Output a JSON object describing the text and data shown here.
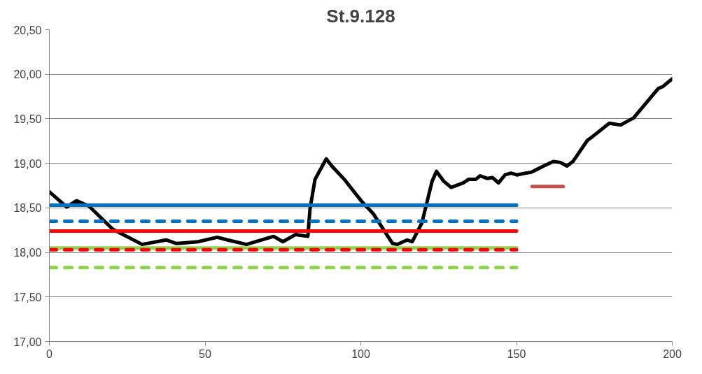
{
  "chart_data": {
    "type": "line",
    "title": "St.9.128",
    "xlim": [
      0,
      200
    ],
    "xticks": [
      0,
      50,
      100,
      150,
      200
    ],
    "ylim": [
      17,
      20.5
    ],
    "yticks": [
      {
        "value": 17,
        "label": "17,00"
      },
      {
        "value": 17.5,
        "label": "17,50"
      },
      {
        "value": 18,
        "label": "18,00"
      },
      {
        "value": 18.5,
        "label": "18,50"
      },
      {
        "value": 19,
        "label": "19,00"
      },
      {
        "value": 19.5,
        "label": "19,50"
      },
      {
        "value": 20,
        "label": "20,00"
      },
      {
        "value": 20.5,
        "label": "20,50"
      }
    ],
    "grid": "y",
    "line_style": "solid",
    "series": [
      {
        "color": "#000000",
        "x": [
          0,
          5.6,
          8.7,
          12.7,
          20.4,
          29.8,
          37.5,
          40.8,
          47.8,
          53.9,
          57.2,
          63.3,
          72.0,
          75.0,
          79.0,
          83.0,
          83.7,
          85.3,
          88.9,
          90.7,
          94.7,
          100.1,
          104.1,
          110.2,
          111.8,
          114.9,
          116.5,
          119.6,
          122.9,
          124.3,
          126.6,
          129.0,
          132.9,
          134.6,
          136.9,
          138.3,
          140.7,
          142.3,
          144.2,
          146.3,
          148.2,
          150.1,
          152.9,
          154.7,
          158.7,
          161.8,
          164.1,
          166.2,
          168.1,
          172.8,
          174.4,
          179.8,
          183.4,
          187.6,
          195.5,
          196.9,
          200
        ],
        "values": [
          18.68,
          18.51,
          18.58,
          18.52,
          18.26,
          18.09,
          18.14,
          18.1,
          18.12,
          18.17,
          18.14,
          18.09,
          18.18,
          18.12,
          18.2,
          18.18,
          18.49,
          18.82,
          19.05,
          18.97,
          18.82,
          18.58,
          18.43,
          18.1,
          18.09,
          18.14,
          18.12,
          18.33,
          18.8,
          18.91,
          18.8,
          18.73,
          18.78,
          18.82,
          18.82,
          18.86,
          18.83,
          18.84,
          18.78,
          18.87,
          18.89,
          18.87,
          18.89,
          18.9,
          18.97,
          19.02,
          19.01,
          18.97,
          19.02,
          19.26,
          19.3,
          19.45,
          19.43,
          19.51,
          19.84,
          19.86,
          19.95
        ]
      },
      {
        "color": "#0070c0",
        "x": [
          0,
          150
        ],
        "values": [
          18.53,
          18.53
        ]
      },
      {
        "color": "#0070c0",
        "x": [
          0,
          150
        ],
        "values": [
          18.35,
          18.35
        ],
        "line_style": "dashed"
      },
      {
        "color": "#ff0000",
        "x": [
          0,
          150
        ],
        "values": [
          18.24,
          18.24
        ]
      },
      {
        "color": "#92d050",
        "x": [
          0,
          150
        ],
        "values": [
          18.05,
          18.05
        ]
      },
      {
        "color": "#ff0000",
        "x": [
          0,
          150
        ],
        "values": [
          18.03,
          18.03
        ],
        "line_style": "dashed"
      },
      {
        "color": "#92d050",
        "x": [
          0,
          150
        ],
        "values": [
          17.83,
          17.83
        ],
        "line_style": "dashed"
      },
      {
        "color": "#c0504d",
        "x": [
          155,
          165
        ],
        "values": [
          18.74,
          18.74
        ]
      }
    ]
  }
}
